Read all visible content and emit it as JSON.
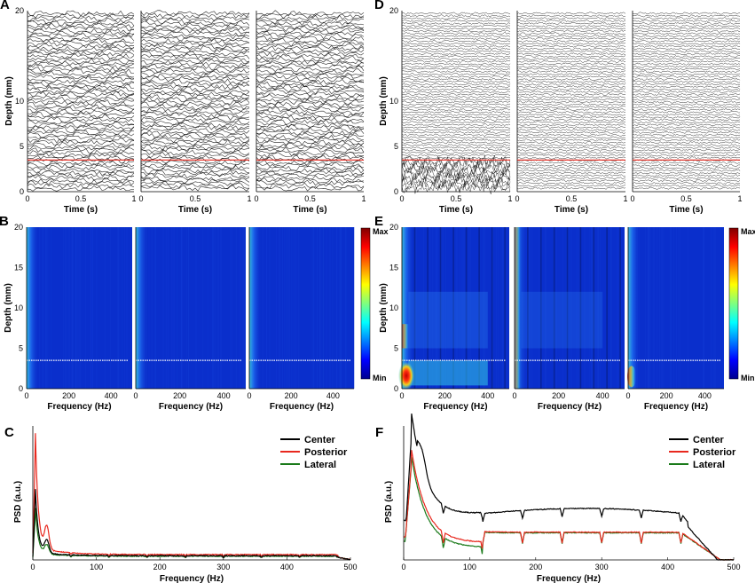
{
  "chart_data": [
    {
      "id": "A",
      "type": "line",
      "panel_label": "A",
      "ylabel": "Depth (mm)",
      "xlabel": "Time (s)",
      "y_ticks": [
        "0",
        "5",
        "10",
        "20"
      ],
      "x_ticks": [
        "0",
        "0.5",
        "1"
      ],
      "xlim": [
        0,
        1
      ],
      "n_traces": 70,
      "red_line_depth_mm": 3.5,
      "subplots": 3
    },
    {
      "id": "B",
      "type": "heatmap",
      "panel_label": "B",
      "ylabel": "Depth (mm)",
      "xlabel": "Frequency (Hz)",
      "y_ticks": [
        "0",
        "5",
        "10",
        "15",
        "20"
      ],
      "x_ticks": [
        "0",
        "200",
        "400"
      ],
      "xlim": [
        0,
        500
      ],
      "ylim": [
        0,
        20
      ],
      "colorbar": {
        "max_label": "Max",
        "min_label": "Min"
      },
      "subplots": 3
    },
    {
      "id": "C",
      "type": "line",
      "panel_label": "C",
      "ylabel": "PSD (a.u.)",
      "xlabel": "Frequency (Hz)",
      "x_ticks": [
        "0",
        "100",
        "200",
        "300",
        "400",
        "500"
      ],
      "xlim": [
        0,
        500
      ],
      "series": [
        {
          "name": "Center",
          "color": "#000000"
        },
        {
          "name": "Posterior",
          "color": "#e8281e"
        },
        {
          "name": "Lateral",
          "color": "#1a7a1a"
        }
      ]
    },
    {
      "id": "D",
      "type": "line",
      "panel_label": "D",
      "ylabel": "Depth (mm)",
      "xlabel": "Time (s)",
      "y_ticks": [
        "0",
        "5",
        "10",
        "20"
      ],
      "x_ticks": [
        "0",
        "0.5",
        "1"
      ],
      "xlim": [
        0,
        1
      ],
      "n_traces": 70,
      "red_line_depth_mm": 3.5,
      "subplots": 3
    },
    {
      "id": "E",
      "type": "heatmap",
      "panel_label": "E",
      "ylabel": "Depth (mm)",
      "xlabel": "Frequency (Hz)",
      "y_ticks": [
        "0",
        "5",
        "10",
        "15",
        "20"
      ],
      "x_ticks": [
        "0",
        "200",
        "400"
      ],
      "xlim": [
        0,
        500
      ],
      "ylim": [
        0,
        20
      ],
      "colorbar": {
        "max_label": "Max",
        "min_label": "Min"
      },
      "subplots": 3
    },
    {
      "id": "F",
      "type": "line",
      "panel_label": "F",
      "ylabel": "PSD (a.u.)",
      "xlabel": "Frequency (Hz)",
      "x_ticks": [
        "0",
        "100",
        "200",
        "300",
        "400",
        "500"
      ],
      "xlim": [
        0,
        500
      ],
      "series": [
        {
          "name": "Center",
          "color": "#000000"
        },
        {
          "name": "Posterior",
          "color": "#e8281e"
        },
        {
          "name": "Lateral",
          "color": "#1a7a1a"
        }
      ]
    }
  ]
}
